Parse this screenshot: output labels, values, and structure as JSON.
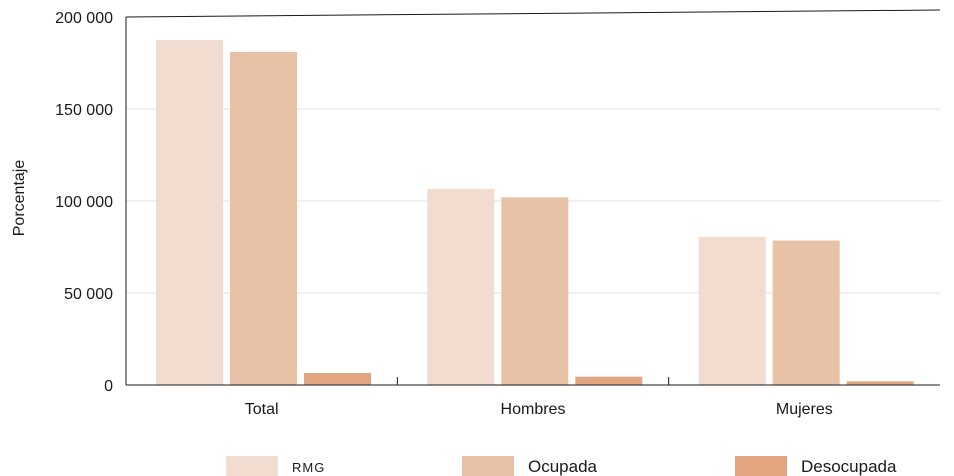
{
  "chart_data": {
    "type": "bar",
    "ylabel": "Porcentaje",
    "xlabel": "",
    "ylim": [
      0,
      200000
    ],
    "yticks": [
      0,
      50000,
      100000,
      150000,
      200000
    ],
    "ytick_labels": [
      "0",
      "50 000",
      "100 000",
      "150 000",
      "200 000"
    ],
    "grid": true,
    "legend_position": "bottom",
    "categories": [
      "Total",
      "Hombres",
      "Mujeres"
    ],
    "series": [
      {
        "name": "RMG",
        "color": "#f2dccf",
        "values": [
          187500,
          106500,
          80500
        ]
      },
      {
        "name": "Ocupada",
        "color": "#e8c2a6",
        "values": [
          181000,
          102000,
          78500
        ]
      },
      {
        "name": "Desocupada",
        "color": "#e2a580",
        "values": [
          6500,
          4500,
          2000
        ]
      }
    ]
  }
}
